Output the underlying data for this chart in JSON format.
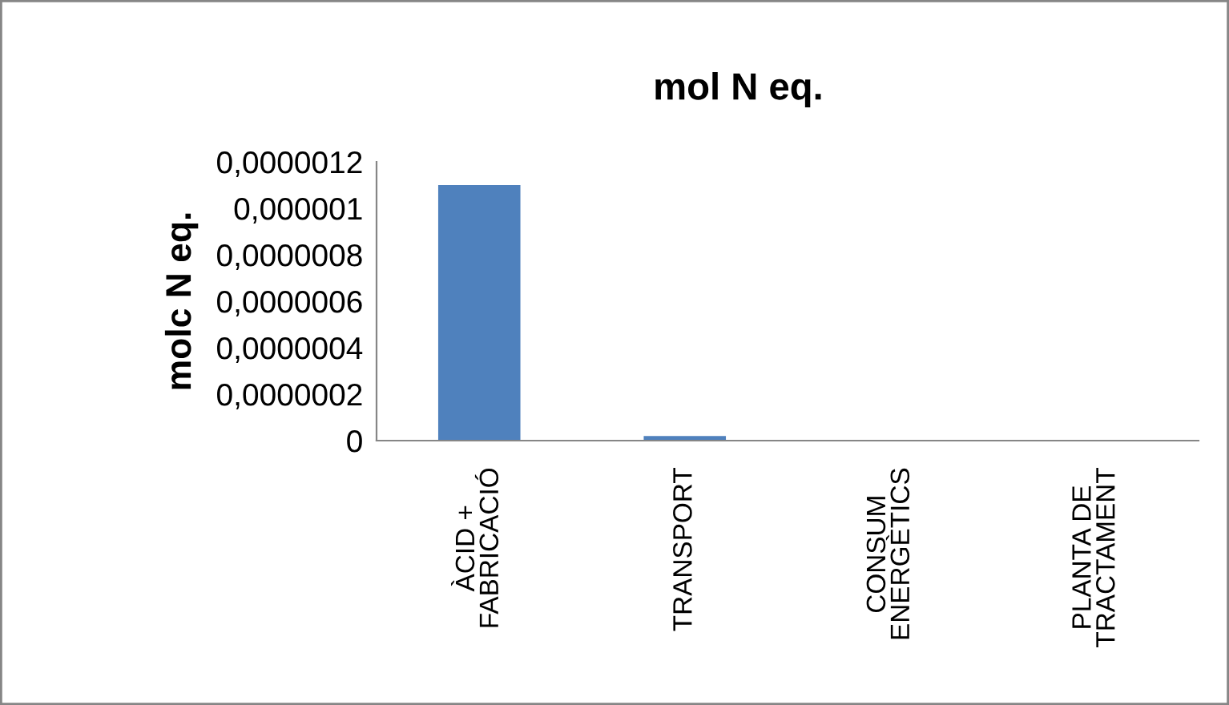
{
  "chart_data": {
    "type": "bar",
    "title": "mol N eq.",
    "ylabel": "molc N eq.",
    "categories": [
      "ÀCID +\nFABRICACIÓ",
      "TRANSPORT",
      "CONSUM\nENERGÈTICS",
      "PLANTA DE\nTRACTAMENT"
    ],
    "values": [
      1.1e-06,
      2e-08,
      0,
      0
    ],
    "color": "#4f81bd",
    "ylim": [
      0,
      1.2e-06
    ],
    "yticks": [
      0,
      {
        "value": 2e-07,
        "label": "0,0000002"
      },
      {
        "value": 4e-07,
        "label": "0,0000004"
      },
      {
        "value": 6e-07,
        "label": "0,0000006"
      },
      {
        "value": 8e-07,
        "label": "0,0000008"
      },
      {
        "value": 1e-06,
        "label": "0,000001"
      },
      {
        "value": 1.2e-06,
        "label": "0,0000012"
      }
    ],
    "grid": false,
    "legend": false
  }
}
